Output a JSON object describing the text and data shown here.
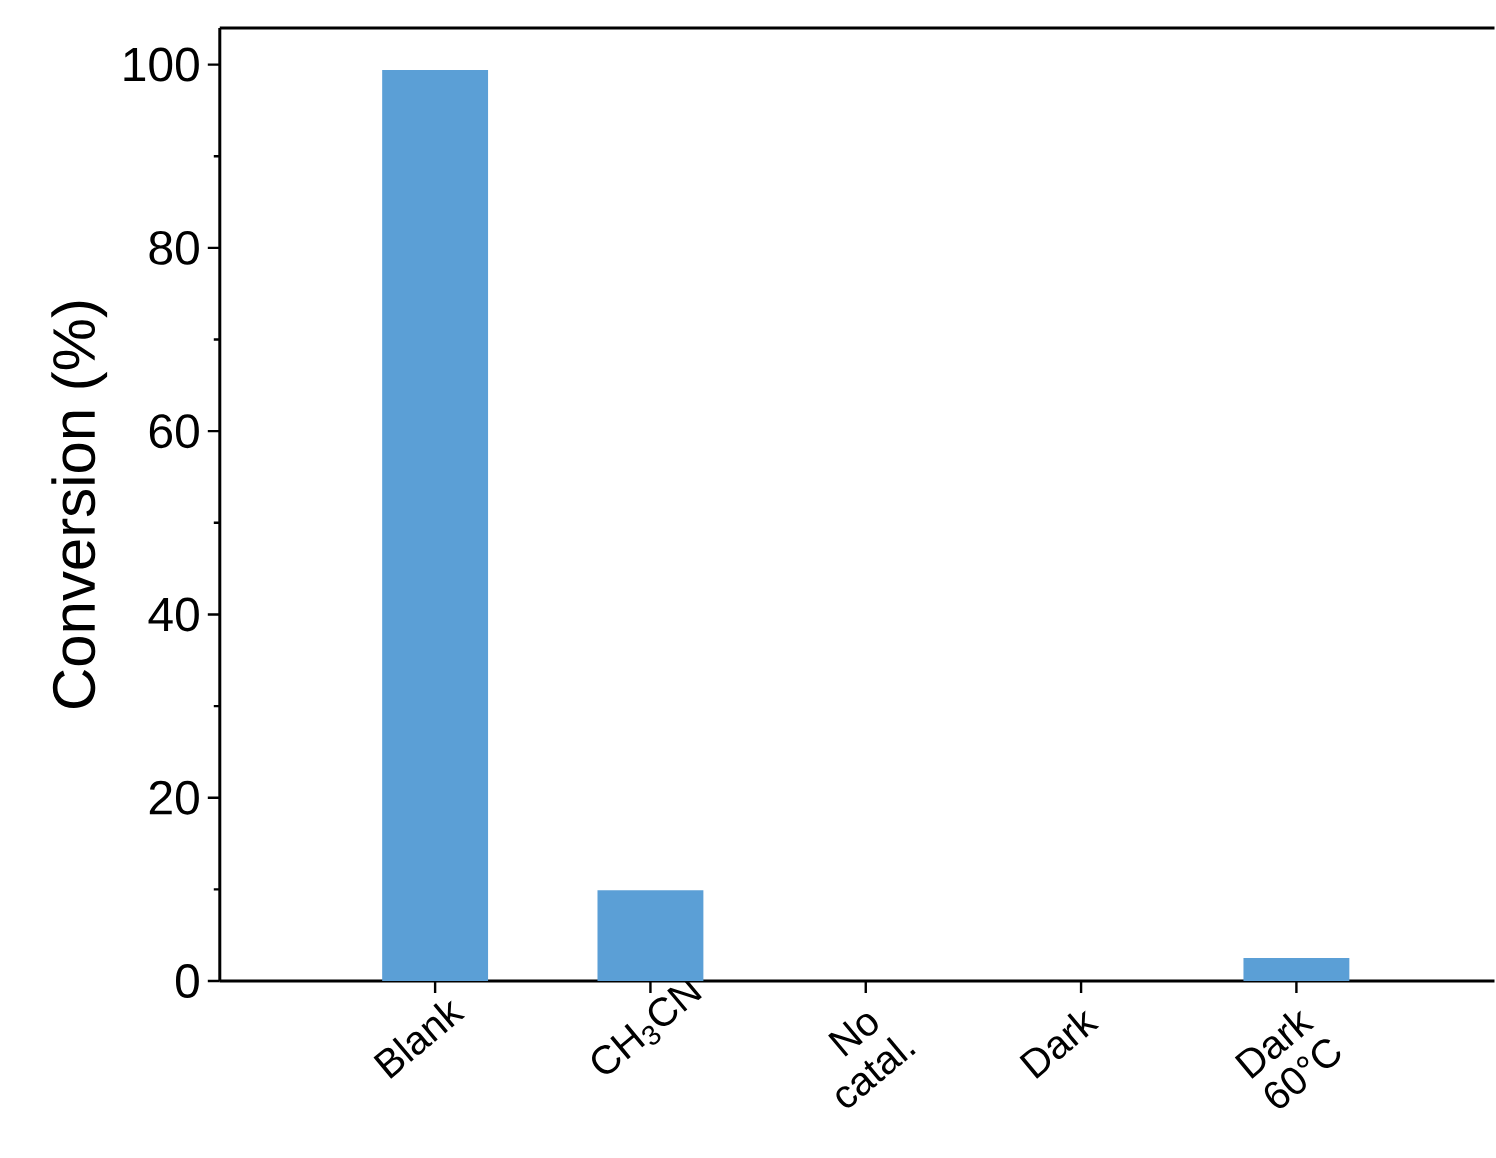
{
  "chart_data": {
    "type": "bar",
    "ylabel": "Conversion (%)",
    "categories": [
      "Blank",
      "CH$_{3}$CN",
      "No catal.",
      "Dark",
      "Dark 60°C"
    ],
    "values": [
      99.4,
      9.9,
      0,
      0,
      2.5
    ],
    "color": "#5b9fd6",
    "ylim": [
      0,
      104
    ],
    "yticks": [
      0,
      20,
      40,
      60,
      80,
      100
    ],
    "grid": false
  }
}
